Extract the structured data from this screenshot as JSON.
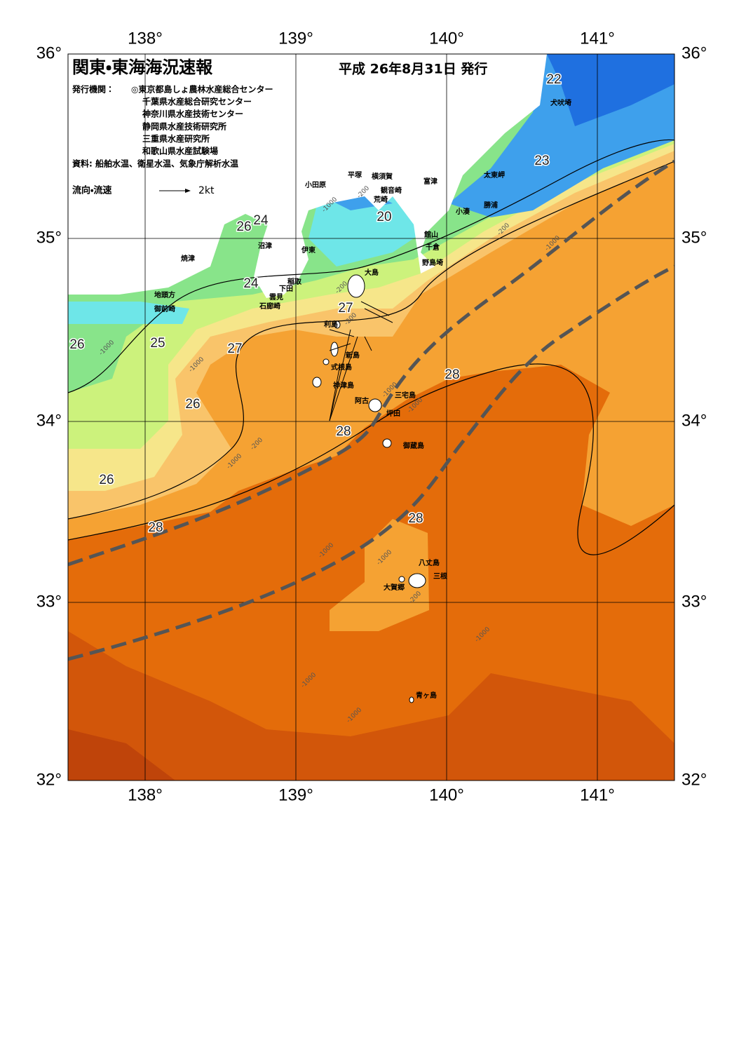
{
  "header": {
    "title": "関東・東海海況速報",
    "date": "平成 26年8月31日 発行",
    "issuer_label": "発行機関：",
    "issuers": [
      "◎東京都島しょ農林水産総合センター",
      "千葉県水産総合研究センター",
      "神奈川県水産技術センター",
      "静岡県水産技術研究所",
      "三重県水産研究所",
      "和歌山県水産試験場"
    ],
    "source": "資料: 船舶水温、衛星水温、気象庁解析水温",
    "legend_label": "流向・流速",
    "legend_speed": "2kt"
  },
  "axes": {
    "lon_labels": [
      "138°",
      "139°",
      "140°",
      "141°"
    ],
    "lat_labels": [
      "36°",
      "35°",
      "34°",
      "33°",
      "32°"
    ]
  },
  "places": [
    "犬吠埼",
    "太東岬",
    "勝浦",
    "小湊",
    "館山",
    "千倉",
    "野島埼",
    "富津",
    "横須賀",
    "観音崎",
    "荒崎",
    "平塚",
    "小田原",
    "伊東",
    "大島",
    "稲取",
    "下田",
    "雲見",
    "石廊崎",
    "沼津",
    "焼津",
    "地頭方",
    "御前崎",
    "利島",
    "新島",
    "式根島",
    "神津島",
    "三宅島",
    "阿古",
    "坪田",
    "御蔵島",
    "八丈島",
    "三根",
    "大賀郷",
    "青ヶ島"
  ],
  "isotherm_labels": [
    "22",
    "23",
    "20",
    "26",
    "24",
    "24",
    "27",
    "26",
    "25",
    "27",
    "28",
    "26",
    "28",
    "26",
    "28",
    "28"
  ],
  "depth_labels": [
    "-200",
    "-1000",
    "-200",
    "-1000",
    "-1000",
    "-1000",
    "-200",
    "-1000",
    "-1000",
    "-1000",
    "-200",
    "-1000",
    "-1000",
    "-1000",
    "-200",
    "-200",
    "-1000",
    "-1000"
  ]
}
